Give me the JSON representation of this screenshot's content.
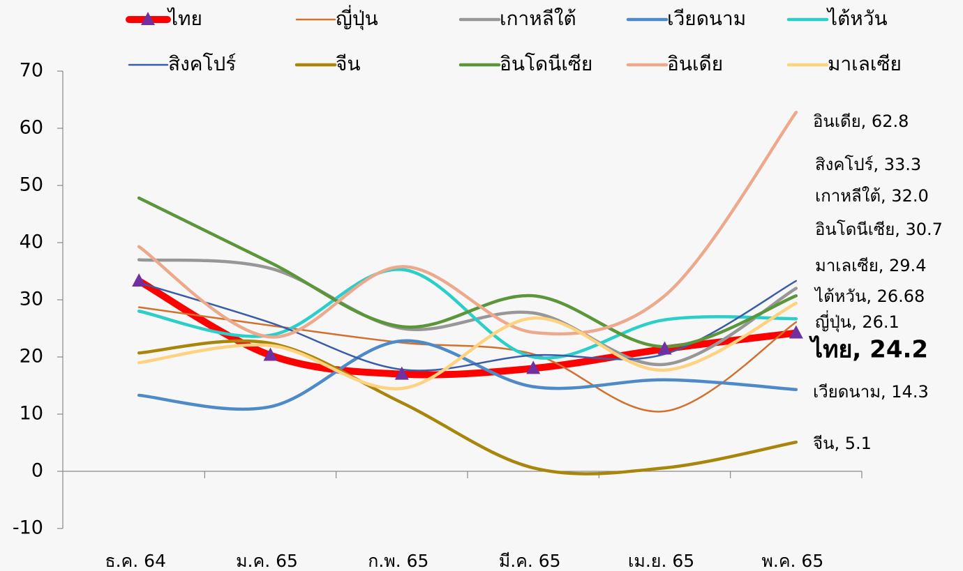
{
  "chart_data": {
    "type": "line",
    "categories": [
      "ธ.ค. 64",
      "ม.ค. 65",
      "ก.พ. 65",
      "มี.ค. 65",
      "เม.ย. 65",
      "พ.ค. 65"
    ],
    "ylim": [
      -10,
      70
    ],
    "yticks": [
      -10,
      0,
      10,
      20,
      30,
      40,
      50,
      60,
      70
    ],
    "smooth": true,
    "series": [
      {
        "name": "ไทย",
        "color": "#ff0000",
        "line_width": 10,
        "marker": "triangle",
        "marker_color": "#7030a0",
        "values": [
          33.3,
          20.3,
          17.0,
          18.0,
          21.4,
          24.2
        ]
      },
      {
        "name": "ญี่ปุ่น",
        "color": "#d2702e",
        "line_width": 2.5,
        "values": [
          28.7,
          25.5,
          22.5,
          20.5,
          10.5,
          26.1
        ]
      },
      {
        "name": "เกาหลีใต้",
        "color": "#979797",
        "line_width": 4.5,
        "values": [
          37.0,
          35.5,
          25.0,
          27.7,
          18.7,
          32.0
        ]
      },
      {
        "name": "เวียดนาม",
        "color": "#4e8ac8",
        "line_width": 4.5,
        "values": [
          13.3,
          11.3,
          22.8,
          14.8,
          16.0,
          14.3
        ]
      },
      {
        "name": "ไต้หวัน",
        "color": "#2bcfc9",
        "line_width": 4.5,
        "values": [
          28.0,
          23.8,
          35.3,
          20.0,
          26.5,
          26.68
        ]
      },
      {
        "name": "สิงคโปร์",
        "color": "#3a5ca8",
        "line_width": 2.5,
        "values": [
          33.0,
          26.0,
          17.8,
          20.3,
          20.5,
          33.3
        ]
      },
      {
        "name": "จีน",
        "color": "#a8860b",
        "line_width": 4.5,
        "values": [
          20.7,
          22.4,
          12.0,
          0.6,
          0.6,
          5.1
        ]
      },
      {
        "name": "อินโดนีเซีย",
        "color": "#5c963a",
        "line_width": 4.5,
        "values": [
          47.8,
          36.5,
          25.3,
          30.7,
          21.8,
          30.7
        ]
      },
      {
        "name": "อินเดีย",
        "color": "#eda98c",
        "line_width": 4.5,
        "values": [
          39.3,
          23.5,
          35.8,
          24.3,
          30.7,
          62.8
        ]
      },
      {
        "name": "มาเลเซีย",
        "color": "#ffd27f",
        "line_width": 4.5,
        "values": [
          19.0,
          22.0,
          14.5,
          26.8,
          17.7,
          29.4
        ]
      }
    ],
    "annotations": [
      "อินเดีย, 62.8",
      "สิงคโปร์, 33.3",
      "เกาหลีใต้, 32.0",
      "อินโดนีเซีย, 30.7",
      "มาเลเซีย, 29.4",
      "ไต้หวัน, 26.68",
      "ญี่ปุ่น, 26.1",
      "ไทย, 24.2",
      "เวียดนาม, 14.3",
      "จีน, 5.1"
    ]
  }
}
